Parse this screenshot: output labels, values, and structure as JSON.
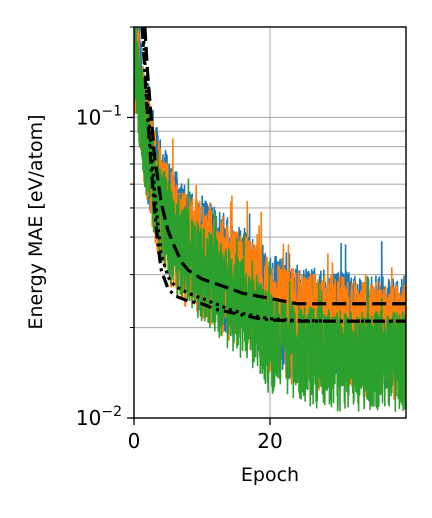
{
  "chart_data": {
    "type": "line",
    "title": "",
    "xlabel": "Epoch",
    "ylabel": "Energy MAE [eV/atom]",
    "xlim": [
      0,
      40
    ],
    "ylim": [
      0.01,
      0.2
    ],
    "yscale": "log",
    "grid": true,
    "legend": "none",
    "x_ticks": [
      0,
      20
    ],
    "x_tick_labels": [
      "0",
      "20"
    ],
    "y_ticks": [
      0.01,
      0.1
    ],
    "y_tick_label_parts": [
      {
        "base": "10",
        "exp": "−2"
      },
      {
        "base": "10",
        "exp": "−1"
      }
    ],
    "series": [
      {
        "color": "#1f77b4",
        "style": "solid",
        "points": [
          [
            0,
            0.2
          ],
          [
            0.5,
            0.17
          ],
          [
            1,
            0.14
          ],
          [
            1.5,
            0.11
          ],
          [
            2,
            0.095
          ],
          [
            3,
            0.075
          ],
          [
            4,
            0.062
          ],
          [
            5,
            0.055
          ],
          [
            6,
            0.05
          ],
          [
            7,
            0.046
          ],
          [
            8,
            0.043
          ],
          [
            9,
            0.042
          ],
          [
            10,
            0.041
          ],
          [
            11,
            0.039
          ],
          [
            12,
            0.037
          ],
          [
            13,
            0.036
          ],
          [
            14,
            0.034
          ],
          [
            15,
            0.033
          ],
          [
            16,
            0.032
          ],
          [
            17,
            0.031
          ],
          [
            18,
            0.029
          ],
          [
            19,
            0.027
          ],
          [
            20,
            0.026
          ],
          [
            22,
            0.025
          ],
          [
            24,
            0.024
          ],
          [
            26,
            0.0235
          ],
          [
            28,
            0.023
          ],
          [
            30,
            0.023
          ],
          [
            32,
            0.0225
          ],
          [
            34,
            0.022
          ],
          [
            36,
            0.022
          ],
          [
            38,
            0.022
          ],
          [
            40,
            0.022
          ]
        ],
        "noise_low": 0.55,
        "noise_high": 1.35
      },
      {
        "color": "#ff7f0e",
        "style": "solid",
        "points": [
          [
            0,
            0.19
          ],
          [
            0.5,
            0.16
          ],
          [
            1,
            0.13
          ],
          [
            1.5,
            0.105
          ],
          [
            2,
            0.09
          ],
          [
            3,
            0.07
          ],
          [
            4,
            0.058
          ],
          [
            5,
            0.052
          ],
          [
            6,
            0.047
          ],
          [
            7,
            0.044
          ],
          [
            8,
            0.041
          ],
          [
            9,
            0.04
          ],
          [
            10,
            0.039
          ],
          [
            11,
            0.037
          ],
          [
            12,
            0.035
          ],
          [
            13,
            0.034
          ],
          [
            14,
            0.032
          ],
          [
            15,
            0.031
          ],
          [
            16,
            0.03
          ],
          [
            17,
            0.029
          ],
          [
            18,
            0.028
          ],
          [
            19,
            0.026
          ],
          [
            20,
            0.025
          ],
          [
            22,
            0.024
          ],
          [
            24,
            0.023
          ],
          [
            26,
            0.0225
          ],
          [
            28,
            0.022
          ],
          [
            30,
            0.022
          ],
          [
            32,
            0.0215
          ],
          [
            34,
            0.021
          ],
          [
            36,
            0.021
          ],
          [
            38,
            0.021
          ],
          [
            40,
            0.021
          ]
        ],
        "noise_low": 0.55,
        "noise_high": 1.35
      },
      {
        "color": "#2ca02c",
        "style": "solid",
        "points": [
          [
            0,
            0.18
          ],
          [
            0.5,
            0.15
          ],
          [
            1,
            0.12
          ],
          [
            1.5,
            0.1
          ],
          [
            2,
            0.085
          ],
          [
            3,
            0.066
          ],
          [
            4,
            0.055
          ],
          [
            5,
            0.048
          ],
          [
            6,
            0.044
          ],
          [
            7,
            0.041
          ],
          [
            8,
            0.038
          ],
          [
            9,
            0.036
          ],
          [
            10,
            0.035
          ],
          [
            11,
            0.033
          ],
          [
            12,
            0.031
          ],
          [
            13,
            0.03
          ],
          [
            14,
            0.028
          ],
          [
            15,
            0.027
          ],
          [
            16,
            0.026
          ],
          [
            17,
            0.025
          ],
          [
            18,
            0.023
          ],
          [
            19,
            0.021
          ],
          [
            20,
            0.02
          ],
          [
            22,
            0.019
          ],
          [
            24,
            0.0185
          ],
          [
            26,
            0.018
          ],
          [
            28,
            0.018
          ],
          [
            30,
            0.0175
          ],
          [
            32,
            0.0175
          ],
          [
            34,
            0.0175
          ],
          [
            36,
            0.0175
          ],
          [
            38,
            0.0175
          ],
          [
            40,
            0.0175
          ]
        ],
        "noise_low": 0.6,
        "noise_high": 1.3
      },
      {
        "color": "#000000",
        "style": "dashed",
        "points": [
          [
            1.6,
            0.2
          ],
          [
            2,
            0.14
          ],
          [
            3,
            0.075
          ],
          [
            4,
            0.052
          ],
          [
            5,
            0.042
          ],
          [
            6,
            0.037
          ],
          [
            7,
            0.033
          ],
          [
            8,
            0.031
          ],
          [
            10,
            0.029
          ],
          [
            12,
            0.028
          ],
          [
            14,
            0.027
          ],
          [
            16,
            0.026
          ],
          [
            18,
            0.0255
          ],
          [
            20,
            0.025
          ],
          [
            22,
            0.0245
          ],
          [
            24,
            0.024
          ],
          [
            26,
            0.024
          ],
          [
            30,
            0.024
          ],
          [
            35,
            0.024
          ],
          [
            40,
            0.024
          ]
        ]
      },
      {
        "color": "#000000",
        "style": "dashdot",
        "points": [
          [
            1.2,
            0.2
          ],
          [
            1.6,
            0.14
          ],
          [
            2,
            0.1
          ],
          [
            2.5,
            0.07
          ],
          [
            3,
            0.05
          ],
          [
            3.5,
            0.038
          ],
          [
            4,
            0.031
          ],
          [
            5,
            0.027
          ],
          [
            6,
            0.0255
          ],
          [
            8,
            0.0245
          ],
          [
            10,
            0.024
          ],
          [
            12,
            0.023
          ],
          [
            14,
            0.0225
          ],
          [
            16,
            0.022
          ],
          [
            18,
            0.0215
          ],
          [
            20,
            0.0212
          ],
          [
            24,
            0.021
          ],
          [
            30,
            0.021
          ],
          [
            35,
            0.021
          ],
          [
            40,
            0.021
          ]
        ]
      },
      {
        "color": "#000000",
        "style": "dotted",
        "points": [
          [
            1.3,
            0.2
          ],
          [
            1.7,
            0.14
          ],
          [
            2,
            0.11
          ],
          [
            2.5,
            0.08
          ],
          [
            3,
            0.058
          ],
          [
            3.5,
            0.044
          ],
          [
            4,
            0.035
          ],
          [
            5,
            0.0295
          ],
          [
            6,
            0.0275
          ],
          [
            8,
            0.026
          ],
          [
            10,
            0.025
          ],
          [
            12,
            0.024
          ],
          [
            14,
            0.023
          ],
          [
            16,
            0.0223
          ],
          [
            18,
            0.0218
          ],
          [
            20,
            0.0214
          ],
          [
            24,
            0.0211
          ],
          [
            30,
            0.021
          ],
          [
            40,
            0.021
          ]
        ]
      }
    ]
  }
}
